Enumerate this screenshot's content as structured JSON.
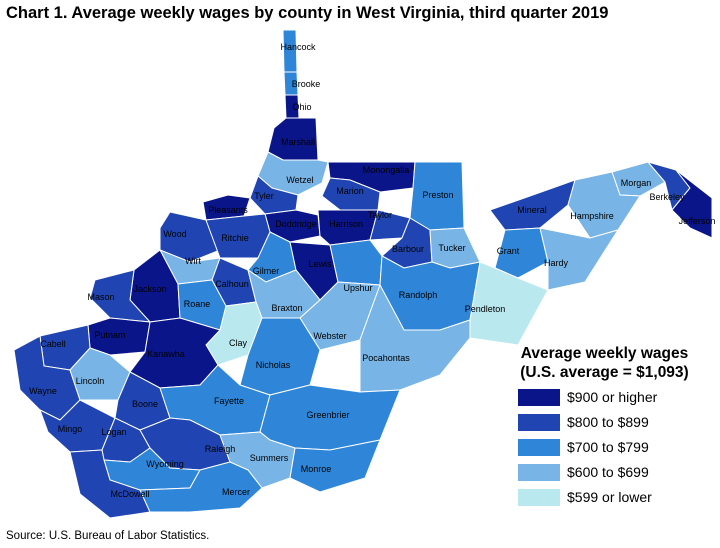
{
  "title": "Chart 1. Average weekly wages by county in West Virginia, third quarter 2019",
  "source": "Source: U.S. Bureau of Labor Statistics.",
  "legend": {
    "title_line1": "Average weekly wages",
    "title_line2": "(U.S. average = $1,093)",
    "items": [
      {
        "label": "$900 or higher",
        "color": "#0b158a"
      },
      {
        "label": "$800 to $899",
        "color": "#2045b3"
      },
      {
        "label": "$700 to $799",
        "color": "#2f86d9"
      },
      {
        "label": "$600 to $699",
        "color": "#78b4e6"
      },
      {
        "label": "$599 or lower",
        "color": "#b9e9ef"
      }
    ]
  },
  "counties": [
    {
      "name": "Hancock",
      "category": "$700 to $799"
    },
    {
      "name": "Brooke",
      "category": "$700 to $799"
    },
    {
      "name": "Ohio",
      "category": "$900 or higher"
    },
    {
      "name": "Marshall",
      "category": "$900 or higher"
    },
    {
      "name": "Wetzel",
      "category": "$600 to $699"
    },
    {
      "name": "Monongalia",
      "category": "$900 or higher"
    },
    {
      "name": "Marion",
      "category": "$800 to $899"
    },
    {
      "name": "Preston",
      "category": "$700 to $799"
    },
    {
      "name": "Tyler",
      "category": "$800 to $899"
    },
    {
      "name": "Pleasants",
      "category": "$900 or higher"
    },
    {
      "name": "Doddridge",
      "category": "$900 or higher"
    },
    {
      "name": "Harrison",
      "category": "$900 or higher"
    },
    {
      "name": "Taylor",
      "category": "$800 to $899"
    },
    {
      "name": "Wood",
      "category": "$800 to $899"
    },
    {
      "name": "Ritchie",
      "category": "$800 to $899"
    },
    {
      "name": "Barbour",
      "category": "$800 to $899"
    },
    {
      "name": "Tucker",
      "category": "$600 to $699"
    },
    {
      "name": "Mineral",
      "category": "$800 to $899"
    },
    {
      "name": "Morgan",
      "category": "$600 to $699"
    },
    {
      "name": "Berkeley",
      "category": "$800 to $899"
    },
    {
      "name": "Jefferson",
      "category": "$900 or higher"
    },
    {
      "name": "Hampshire",
      "category": "$600 to $699"
    },
    {
      "name": "Grant",
      "category": "$700 to $799"
    },
    {
      "name": "Hardy",
      "category": "$600 to $699"
    },
    {
      "name": "Wirt",
      "category": "$600 to $699"
    },
    {
      "name": "Gilmer",
      "category": "$700 to $799"
    },
    {
      "name": "Lewis",
      "category": "$900 or higher"
    },
    {
      "name": "Upshur",
      "category": "$700 to $799"
    },
    {
      "name": "Randolph",
      "category": "$700 to $799"
    },
    {
      "name": "Pendleton",
      "category": "$599 or lower"
    },
    {
      "name": "Calhoun",
      "category": "$800 to $899"
    },
    {
      "name": "Jackson",
      "category": "$900 or higher"
    },
    {
      "name": "Mason",
      "category": "$800 to $899"
    },
    {
      "name": "Roane",
      "category": "$700 to $799"
    },
    {
      "name": "Braxton",
      "category": "$600 to $699"
    },
    {
      "name": "Webster",
      "category": "$600 to $699"
    },
    {
      "name": "Pocahontas",
      "category": "$600 to $699"
    },
    {
      "name": "Putnam",
      "category": "$900 or higher"
    },
    {
      "name": "Cabell",
      "category": "$800 to $899"
    },
    {
      "name": "Clay",
      "category": "$599 or lower"
    },
    {
      "name": "Kanawha",
      "category": "$900 or higher"
    },
    {
      "name": "Nicholas",
      "category": "$700 to $799"
    },
    {
      "name": "Wayne",
      "category": "$800 to $899"
    },
    {
      "name": "Lincoln",
      "category": "$600 to $699"
    },
    {
      "name": "Boone",
      "category": "$800 to $899"
    },
    {
      "name": "Fayette",
      "category": "$700 to $799"
    },
    {
      "name": "Greenbrier",
      "category": "$700 to $799"
    },
    {
      "name": "Mingo",
      "category": "$800 to $899"
    },
    {
      "name": "Logan",
      "category": "$800 to $899"
    },
    {
      "name": "Raleigh",
      "category": "$800 to $899"
    },
    {
      "name": "Summers",
      "category": "$600 to $699"
    },
    {
      "name": "Wyoming",
      "category": "$700 to $799"
    },
    {
      "name": "Monroe",
      "category": "$700 to $799"
    },
    {
      "name": "McDowell",
      "category": "$800 to $899"
    },
    {
      "name": "Mercer",
      "category": "$700 to $799"
    }
  ]
}
